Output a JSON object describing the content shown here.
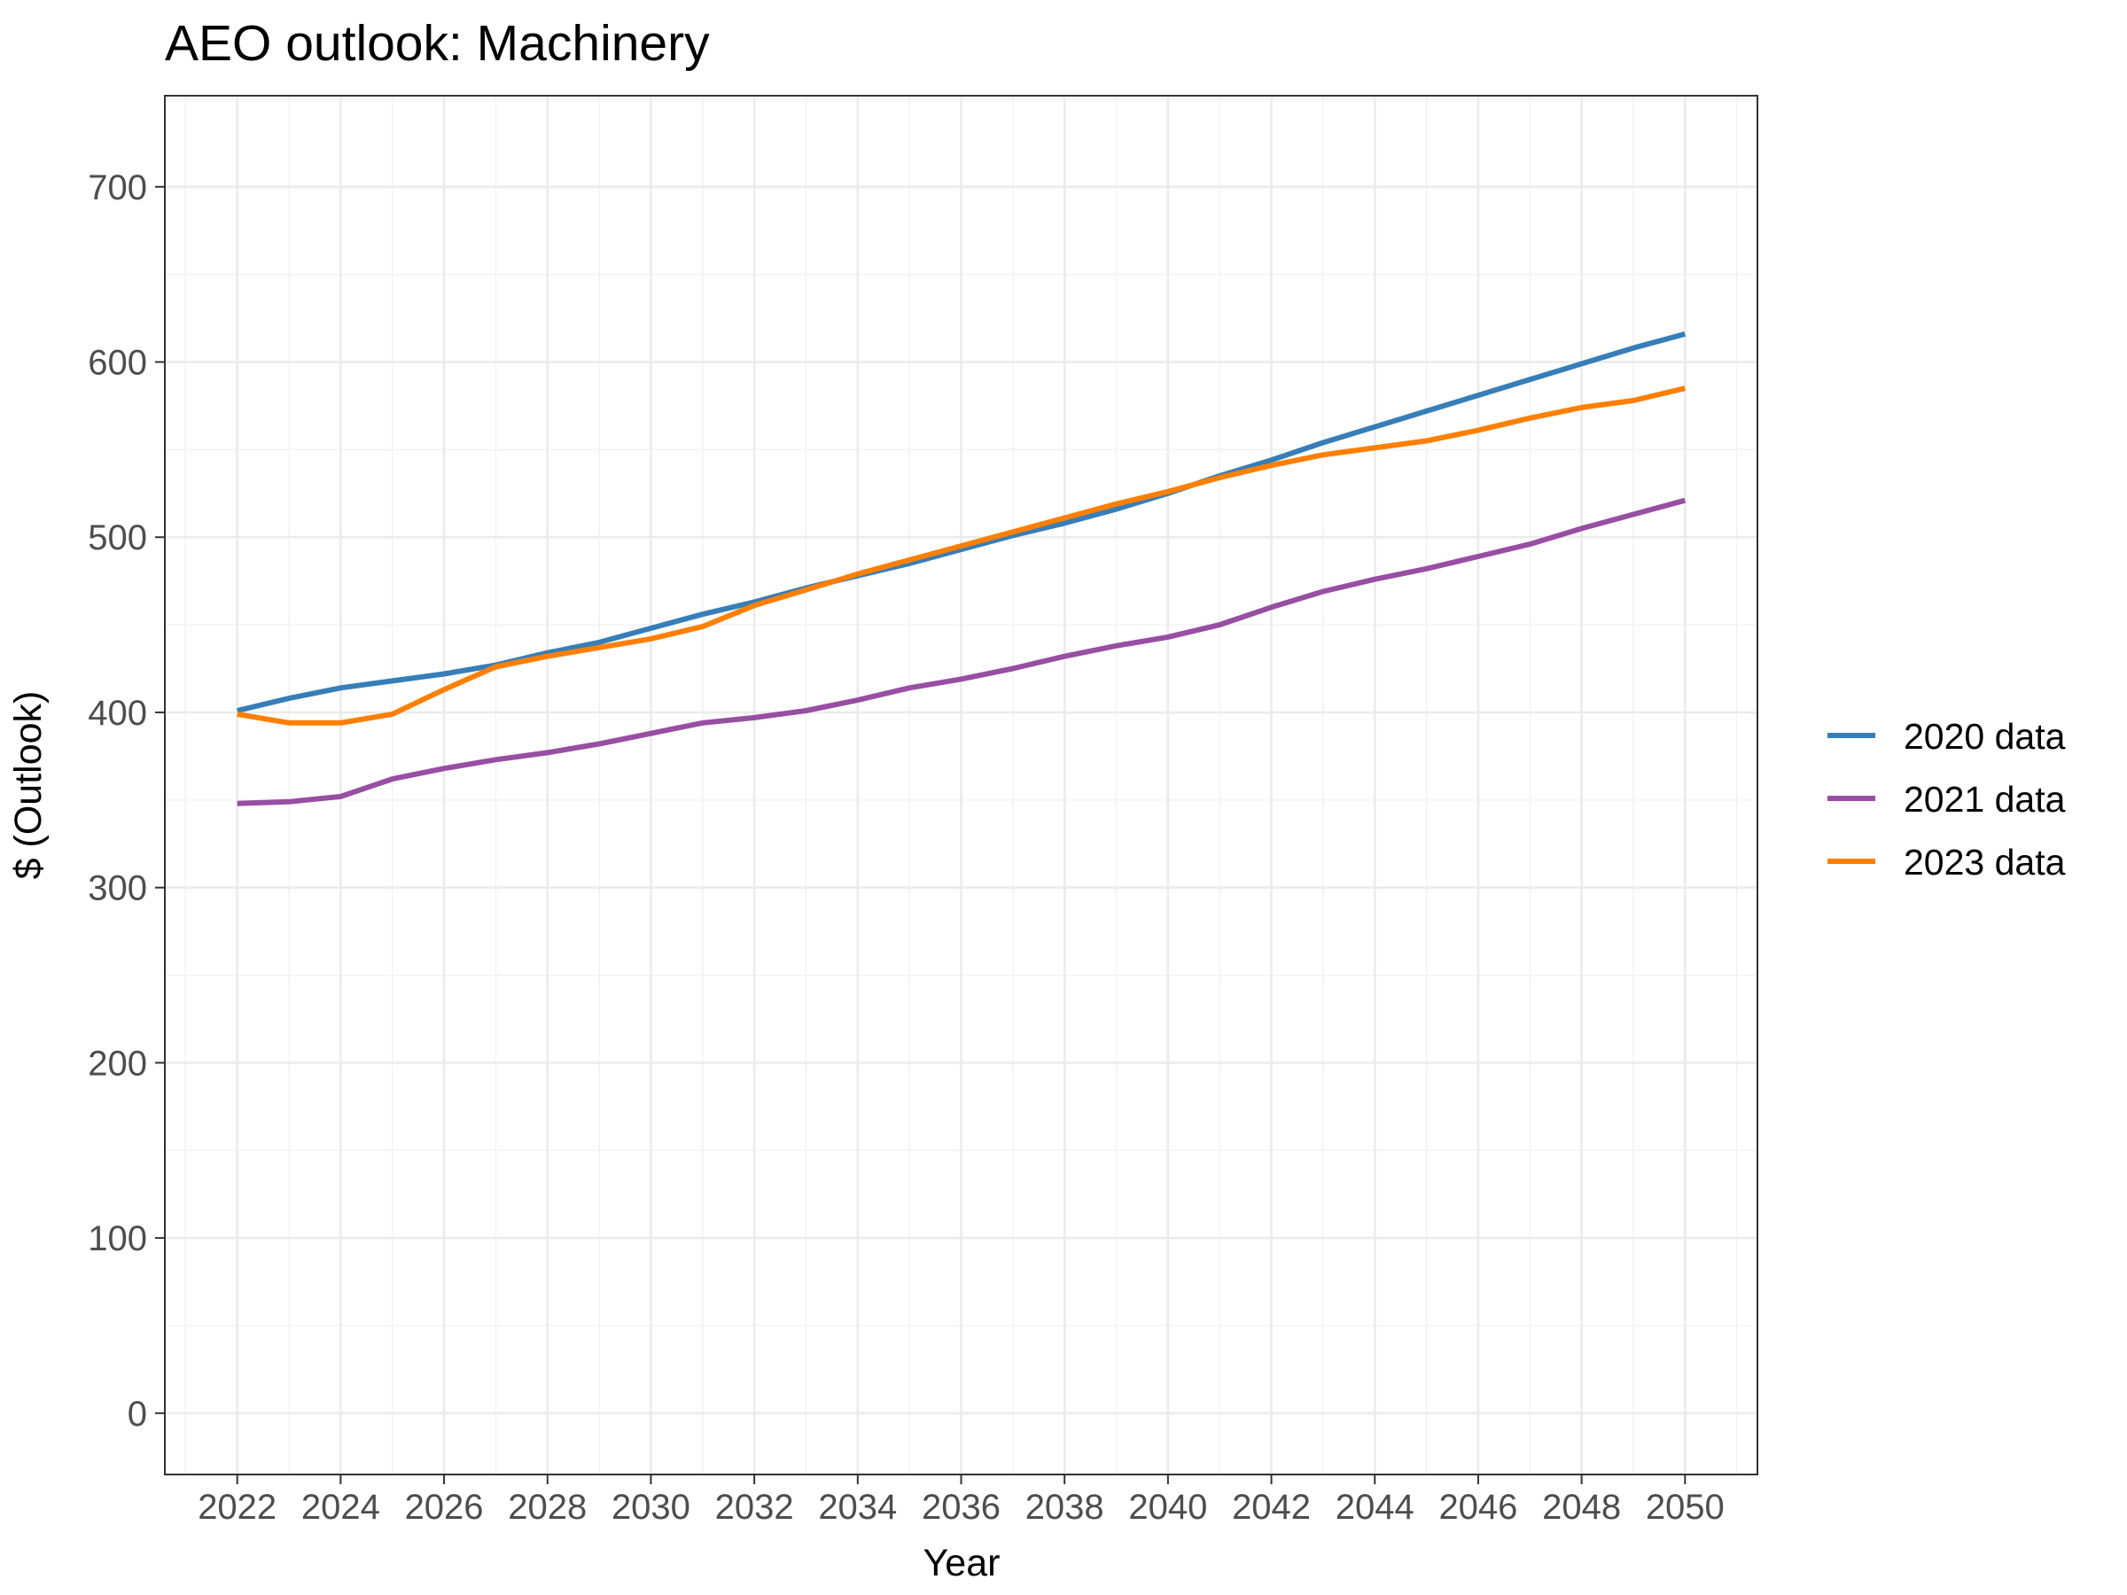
{
  "chart_data": {
    "type": "line",
    "title": "AEO outlook: Machinery",
    "xlabel": "Year",
    "ylabel": "$ (Outlook)",
    "xlim": [
      2020.6,
      2051.4
    ],
    "ylim": [
      -35,
      752
    ],
    "x_ticks": [
      2022,
      2024,
      2026,
      2028,
      2030,
      2032,
      2034,
      2036,
      2038,
      2040,
      2042,
      2044,
      2046,
      2048,
      2050
    ],
    "y_ticks": [
      0,
      100,
      200,
      300,
      400,
      500,
      600,
      700
    ],
    "grid": true,
    "legend_position": "right",
    "x": [
      2022,
      2023,
      2024,
      2025,
      2026,
      2027,
      2028,
      2029,
      2030,
      2031,
      2032,
      2033,
      2034,
      2035,
      2036,
      2037,
      2038,
      2039,
      2040,
      2041,
      2042,
      2043,
      2044,
      2045,
      2046,
      2047,
      2048,
      2049,
      2050
    ],
    "series": [
      {
        "name": "2020 data",
        "color": "#377eb8",
        "values": [
          401,
          408,
          414,
          418,
          422,
          427,
          434,
          440,
          448,
          456,
          463,
          471,
          478,
          485,
          493,
          501,
          508,
          516,
          525,
          535,
          544,
          554,
          563,
          572,
          581,
          590,
          599,
          608,
          616
        ]
      },
      {
        "name": "2021 data",
        "color": "#984ea3",
        "values": [
          348,
          349,
          352,
          362,
          368,
          373,
          377,
          382,
          388,
          394,
          397,
          401,
          407,
          414,
          419,
          425,
          432,
          438,
          443,
          450,
          460,
          469,
          476,
          482,
          489,
          496,
          505,
          513,
          521
        ]
      },
      {
        "name": "2023 data",
        "color": "#ff7f00",
        "values": [
          399,
          394,
          394,
          399,
          413,
          426,
          432,
          437,
          442,
          449,
          461,
          470,
          479,
          487,
          495,
          503,
          511,
          519,
          526,
          534,
          541,
          547,
          551,
          555,
          561,
          568,
          574,
          578,
          585
        ]
      }
    ]
  }
}
